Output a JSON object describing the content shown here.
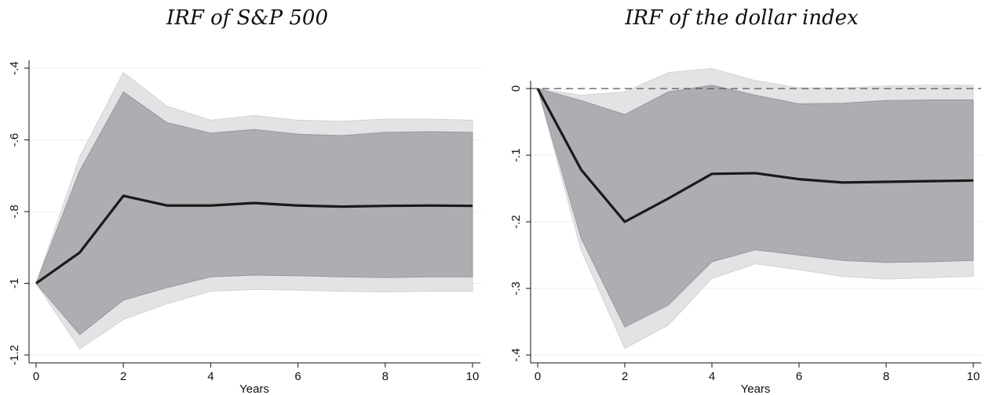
{
  "chart_data": [
    {
      "type": "area",
      "title": "IRF of S&P 500",
      "xlabel": "Years",
      "ylabel": "",
      "xlim": [
        0,
        10
      ],
      "ylim": [
        -1.2,
        -0.4
      ],
      "xticks": [
        0,
        2,
        4,
        6,
        8,
        10
      ],
      "yticks": [
        -1.2,
        -1,
        -0.8,
        -0.6,
        -0.4
      ],
      "ytick_labels": [
        "-1.2",
        "-1",
        "-.8",
        "-.6",
        "-.4"
      ],
      "grid": true,
      "zero_line": false,
      "colors": {
        "outer_band": "#e3e3e5",
        "inner_band": "#adaeb2",
        "line": "#1a1a1a",
        "grid": "#ececec"
      },
      "x": [
        0,
        1,
        2,
        3,
        4,
        5,
        6,
        7,
        8,
        9,
        10
      ],
      "series": [
        {
          "values": [
            -1.0,
            -0.914,
            -0.756,
            -0.783,
            -0.783,
            -0.776,
            -0.783,
            -0.786,
            -0.784,
            -0.783,
            -0.784
          ]
        }
      ],
      "bands": [
        {
          "level": "outer",
          "upper": [
            -1.0,
            -0.647,
            -0.412,
            -0.506,
            -0.545,
            -0.532,
            -0.545,
            -0.548,
            -0.542,
            -0.542,
            -0.545
          ],
          "lower": [
            -1.0,
            -1.183,
            -1.101,
            -1.057,
            -1.022,
            -1.017,
            -1.019,
            -1.022,
            -1.024,
            -1.022,
            -1.022
          ]
        },
        {
          "level": "inner",
          "upper": [
            -1.0,
            -0.686,
            -0.466,
            -0.552,
            -0.581,
            -0.571,
            -0.584,
            -0.588,
            -0.579,
            -0.577,
            -0.579
          ],
          "lower": [
            -1.0,
            -1.143,
            -1.047,
            -1.012,
            -0.982,
            -0.977,
            -0.979,
            -0.982,
            -0.984,
            -0.982,
            -0.982
          ]
        }
      ]
    },
    {
      "type": "area",
      "title": "IRF of the dollar index",
      "xlabel": "Years",
      "ylabel": "",
      "xlim": [
        0,
        10
      ],
      "ylim": [
        -0.4,
        0
      ],
      "xticks": [
        0,
        2,
        4,
        6,
        8,
        10
      ],
      "yticks": [
        -0.4,
        -0.3,
        -0.2,
        -0.1,
        0
      ],
      "ytick_labels": [
        "-.4",
        "-.3",
        "-.2",
        "-.1",
        "0"
      ],
      "grid": true,
      "zero_line": true,
      "colors": {
        "outer_band": "#e3e3e5",
        "inner_band": "#adaeb2",
        "line": "#1a1a1a",
        "grid": "#ececec"
      },
      "x": [
        0,
        1,
        2,
        3,
        4,
        5,
        6,
        7,
        8,
        9,
        10
      ],
      "series": [
        {
          "values": [
            0.0,
            -0.122,
            -0.2,
            -0.165,
            -0.128,
            -0.127,
            -0.136,
            -0.141,
            -0.14,
            -0.139,
            -0.138
          ]
        }
      ],
      "bands": [
        {
          "level": "outer",
          "upper": [
            0.0,
            -0.01,
            -0.005,
            0.024,
            0.03,
            0.012,
            0.001,
            0.001,
            0.004,
            0.005,
            0.005
          ],
          "lower": [
            0.0,
            -0.243,
            -0.39,
            -0.355,
            -0.285,
            -0.263,
            -0.272,
            -0.282,
            -0.286,
            -0.284,
            -0.282
          ]
        },
        {
          "level": "inner",
          "upper": [
            0.0,
            -0.018,
            -0.039,
            -0.005,
            0.005,
            -0.01,
            -0.023,
            -0.022,
            -0.018,
            -0.017,
            -0.017
          ],
          "lower": [
            0.0,
            -0.225,
            -0.358,
            -0.325,
            -0.26,
            -0.242,
            -0.25,
            -0.258,
            -0.261,
            -0.26,
            -0.258
          ]
        }
      ]
    }
  ]
}
